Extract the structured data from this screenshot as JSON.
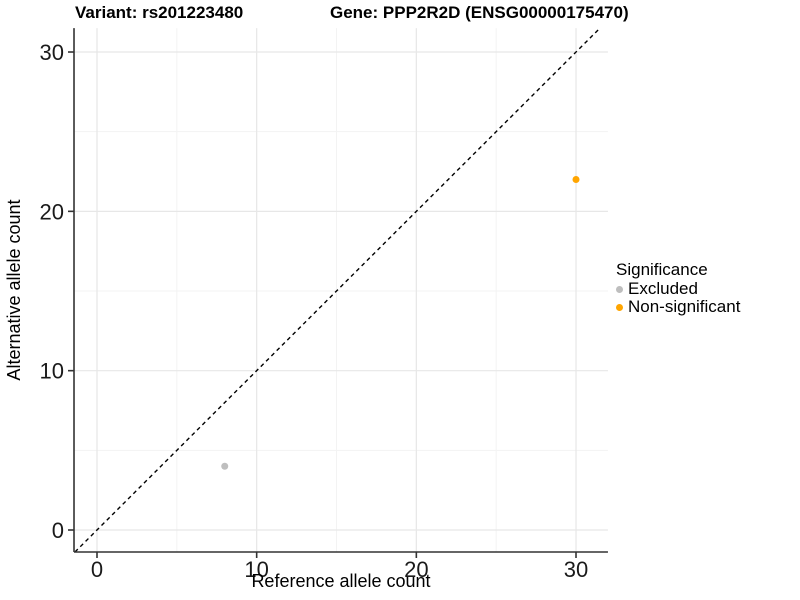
{
  "header": {
    "variant_title": "Variant: rs201223480",
    "gene_title": "Gene: PPP2R2D (ENSG00000175470)"
  },
  "legend": {
    "title": "Significance",
    "items": [
      {
        "label": "Excluded",
        "color": "#BEBEBE"
      },
      {
        "label": "Non-significant",
        "color": "#FFA500"
      }
    ]
  },
  "chart_data": {
    "type": "scatter",
    "title": "Variant: rs201223480   Gene: PPP2R2D (ENSG00000175470)",
    "xlabel": "Reference allele count",
    "ylabel": "Alternative allele count",
    "xlim": [
      -1.44,
      32
    ],
    "ylim": [
      -1.38,
      31.5
    ],
    "x_ticks": [
      0,
      10,
      20,
      30
    ],
    "y_ticks": [
      0,
      10,
      20,
      30
    ],
    "grid": "major and minor, very light gray",
    "legend_position": "right",
    "series": [
      {
        "name": "Excluded",
        "color": "#BEBEBE",
        "points": [
          [
            8,
            4
          ]
        ]
      },
      {
        "name": "Non-significant",
        "color": "#FFA500",
        "points": [
          [
            30,
            22
          ]
        ]
      }
    ],
    "reference_line": {
      "type": "identity y=x",
      "style": "dashed",
      "color": "#000000"
    },
    "colors": {
      "axis_line": "#333333",
      "tick_label": "#1a1a1a",
      "grid_major": "#E7E7E7",
      "grid_minor": "#F3F3F3"
    }
  }
}
